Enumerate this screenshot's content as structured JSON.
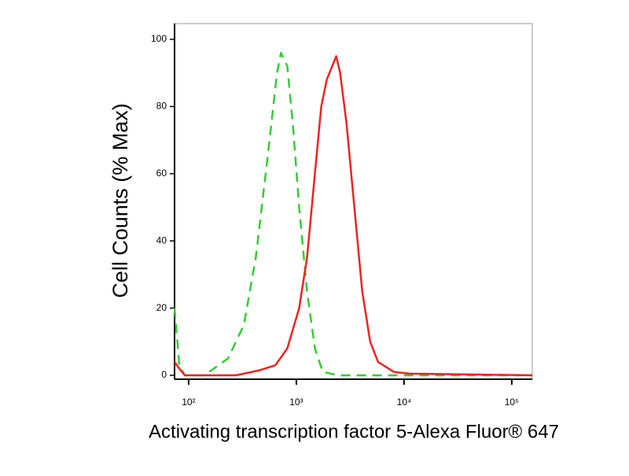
{
  "chart_data": {
    "type": "line",
    "x_label": "Activating transcription factor 5-Alexa Fluor® 647",
    "y_label": "Cell Counts (% Max)",
    "xscale": "log",
    "xlim": [
      74,
      155000
    ],
    "ylim": [
      0,
      100
    ],
    "xticks": [
      {
        "value": 100,
        "label": "10²"
      },
      {
        "value": 1000,
        "label": "10³"
      },
      {
        "value": 10000,
        "label": "10⁴"
      },
      {
        "value": 100000,
        "label": "10⁵"
      }
    ],
    "yticks": [
      0,
      20,
      40,
      60,
      80,
      100
    ],
    "series": [
      {
        "color": "#33cc33",
        "dash": true,
        "x": [
          74,
          82,
          92,
          140,
          232,
          326,
          420,
          541,
          661,
          720,
          824,
          927,
          1062,
          1257,
          1487,
          1759,
          2465,
          155000
        ],
        "values": [
          20,
          3,
          0,
          0,
          5,
          15,
          35,
          65,
          90,
          96,
          92,
          75,
          50,
          25,
          8,
          1,
          0,
          0
        ]
      },
      {
        "color": "#ee2222",
        "dash": false,
        "x": [
          74,
          82,
          92,
          276,
          456,
          639,
          824,
          1062,
          1257,
          1487,
          1702,
          1915,
          2153,
          2343,
          2551,
          2920,
          3453,
          4090,
          4842,
          5728,
          8035,
          11250,
          155000
        ],
        "values": [
          4,
          2,
          0,
          0,
          1.5,
          3,
          8,
          20,
          35,
          60,
          80,
          88,
          92,
          95,
          90,
          75,
          50,
          25,
          10,
          4,
          1,
          0.5,
          0
        ]
      }
    ]
  }
}
